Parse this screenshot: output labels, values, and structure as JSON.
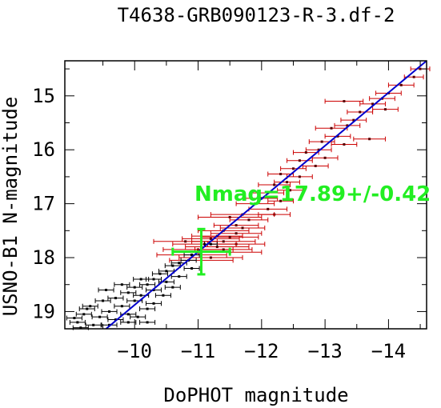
{
  "chart_data": {
    "type": "scatter",
    "title": "T4638-GRB090123-R-3.df-2",
    "xlabel": "DoPHOT magnitude",
    "ylabel": "USNO-B1 N-magnitude",
    "xlim": [
      -8.9,
      -14.6
    ],
    "ylim": [
      14.35,
      19.32
    ],
    "x_ticks": [
      -10,
      -11,
      -12,
      -13,
      -14
    ],
    "x_tick_labels": [
      "−10",
      "−11",
      "−12",
      "−13",
      "−14"
    ],
    "y_ticks": [
      15,
      16,
      17,
      18,
      19
    ],
    "y_tick_labels": [
      "15",
      "16",
      "17",
      "18",
      "19"
    ],
    "grid": false,
    "annotation": {
      "text": "Nmag=17.89+/-0.42",
      "color": "#22ee22"
    },
    "fit_line": {
      "color": "#0000cc",
      "points": [
        [
          -9.55,
          19.32
        ],
        [
          -14.6,
          14.35
        ]
      ]
    },
    "target": {
      "x": -11.05,
      "y": 17.89,
      "xerr": 0.45,
      "yerr": 0.42,
      "color": "#22ee22"
    },
    "series": [
      {
        "color": "#cc0000",
        "point_color": "#550000",
        "points": [
          [
            -14.5,
            14.5,
            0.15
          ],
          [
            -14.4,
            14.65,
            0.15
          ],
          [
            -14.2,
            14.8,
            0.2
          ],
          [
            -14.0,
            14.95,
            0.2
          ],
          [
            -13.9,
            15.05,
            0.2
          ],
          [
            -13.75,
            15.15,
            0.2
          ],
          [
            -13.95,
            15.25,
            0.2
          ],
          [
            -13.3,
            15.1,
            0.3
          ],
          [
            -13.55,
            15.3,
            0.2
          ],
          [
            -13.45,
            15.45,
            0.2
          ],
          [
            -13.35,
            15.55,
            0.2
          ],
          [
            -13.1,
            15.6,
            0.25
          ],
          [
            -13.2,
            15.75,
            0.2
          ],
          [
            -12.95,
            15.85,
            0.2
          ],
          [
            -13.7,
            15.8,
            0.25
          ],
          [
            -13.3,
            15.9,
            0.2
          ],
          [
            -12.9,
            16.0,
            0.2
          ],
          [
            -12.7,
            16.05,
            0.2
          ],
          [
            -13.0,
            16.15,
            0.2
          ],
          [
            -12.6,
            16.2,
            0.2
          ],
          [
            -12.85,
            16.3,
            0.2
          ],
          [
            -12.5,
            16.35,
            0.2
          ],
          [
            -12.3,
            16.45,
            0.2
          ],
          [
            -12.6,
            16.5,
            0.2
          ],
          [
            -12.4,
            16.6,
            0.2
          ],
          [
            -12.2,
            16.65,
            0.25
          ],
          [
            -12.45,
            16.75,
            0.2
          ],
          [
            -12.1,
            16.8,
            0.25
          ],
          [
            -12.0,
            16.9,
            0.25
          ],
          [
            -12.3,
            16.95,
            0.2
          ],
          [
            -11.9,
            17.0,
            0.3
          ],
          [
            -12.1,
            17.1,
            0.3
          ],
          [
            -12.2,
            17.2,
            0.25
          ],
          [
            -11.7,
            17.2,
            0.5
          ],
          [
            -11.5,
            17.25,
            0.5
          ],
          [
            -11.8,
            17.3,
            0.3
          ],
          [
            -11.6,
            17.4,
            0.35
          ],
          [
            -11.7,
            17.45,
            0.35
          ],
          [
            -11.4,
            17.5,
            0.4
          ],
          [
            -11.6,
            17.55,
            0.4
          ],
          [
            -11.3,
            17.6,
            0.4
          ],
          [
            -11.5,
            17.62,
            0.45
          ],
          [
            -11.2,
            17.65,
            0.45
          ],
          [
            -11.4,
            17.7,
            0.5
          ],
          [
            -11.6,
            17.75,
            0.45
          ],
          [
            -11.1,
            17.75,
            0.5
          ],
          [
            -10.8,
            17.7,
            0.5
          ],
          [
            -11.3,
            17.8,
            0.5
          ],
          [
            -11.0,
            17.85,
            0.55
          ],
          [
            -11.5,
            17.9,
            0.5
          ],
          [
            -10.9,
            17.95,
            0.55
          ],
          [
            -11.2,
            18.0,
            0.5
          ],
          [
            -11.05,
            18.05,
            0.5
          ],
          [
            -11.4,
            17.85,
            0.45
          ]
        ]
      },
      {
        "color": "#000000",
        "point_color": "#000000",
        "points": [
          [
            -11.2,
            17.75,
            0.1
          ],
          [
            -10.9,
            17.95,
            0.12
          ],
          [
            -10.7,
            18.1,
            0.12
          ],
          [
            -10.9,
            18.2,
            0.12
          ],
          [
            -10.5,
            18.25,
            0.12
          ],
          [
            -10.7,
            18.35,
            0.12
          ],
          [
            -10.3,
            18.4,
            0.12
          ],
          [
            -10.5,
            18.45,
            0.12
          ],
          [
            -10.2,
            18.5,
            0.12
          ],
          [
            -10.6,
            18.55,
            0.12
          ],
          [
            -10.0,
            18.55,
            0.12
          ],
          [
            -10.3,
            18.6,
            0.12
          ],
          [
            -9.9,
            18.65,
            0.12
          ],
          [
            -10.1,
            18.7,
            0.12
          ],
          [
            -10.45,
            18.7,
            0.12
          ],
          [
            -9.7,
            18.75,
            0.12
          ],
          [
            -10.0,
            18.8,
            0.12
          ],
          [
            -10.3,
            18.85,
            0.12
          ],
          [
            -9.5,
            18.8,
            0.12
          ],
          [
            -9.8,
            18.9,
            0.12
          ],
          [
            -10.2,
            18.95,
            0.12
          ],
          [
            -9.3,
            18.9,
            0.12
          ],
          [
            -9.6,
            19.0,
            0.12
          ],
          [
            -9.9,
            19.05,
            0.12
          ],
          [
            -9.2,
            19.05,
            0.12
          ],
          [
            -9.45,
            19.1,
            0.12
          ],
          [
            -9.7,
            19.15,
            0.12
          ],
          [
            -10.05,
            19.1,
            0.12
          ],
          [
            -9.1,
            19.2,
            0.12
          ],
          [
            -9.35,
            19.25,
            0.12
          ],
          [
            -9.6,
            19.25,
            0.12
          ],
          [
            -9.9,
            19.2,
            0.12
          ],
          [
            -10.2,
            19.2,
            0.12
          ],
          [
            -9.05,
            19.12,
            0.12
          ],
          [
            -9.55,
            18.6,
            0.12
          ],
          [
            -9.8,
            18.5,
            0.12
          ],
          [
            -10.1,
            18.4,
            0.12
          ],
          [
            -10.4,
            18.3,
            0.12
          ],
          [
            -10.6,
            18.15,
            0.12
          ],
          [
            -10.85,
            18.05,
            0.12
          ],
          [
            -9.25,
            18.95,
            0.12
          ],
          [
            -9.15,
            19.3,
            0.12
          ]
        ]
      }
    ]
  }
}
